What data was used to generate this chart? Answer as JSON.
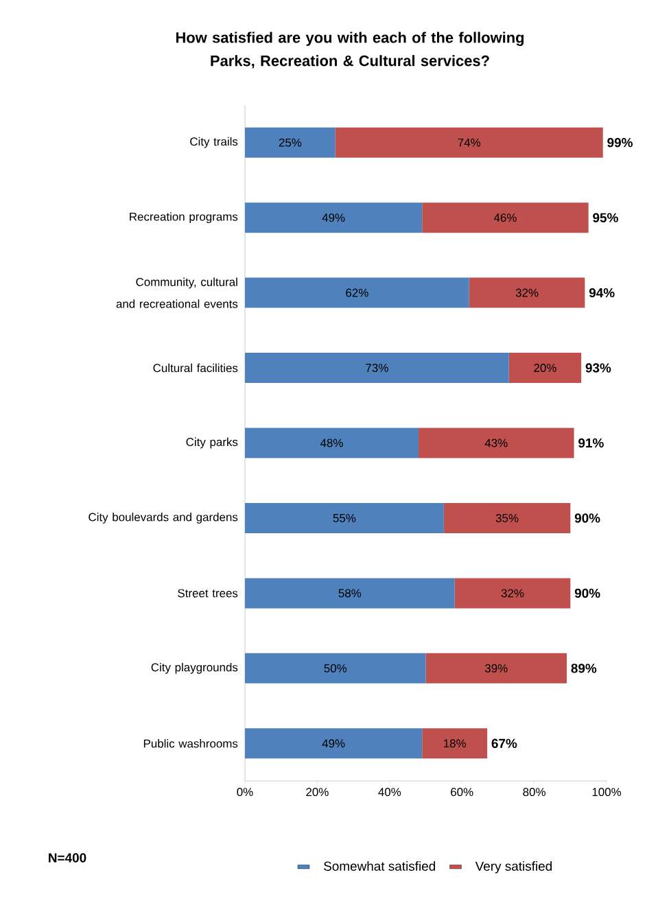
{
  "chart_data": {
    "type": "bar",
    "orientation": "horizontal",
    "stacked": true,
    "title": "How satisfied are you with each of the following Parks, Recreation & Cultural services?",
    "categories": [
      "City trails",
      "Recreation programs",
      "Community, cultural and recreational events",
      "Cultural facilities",
      "City parks",
      "City boulevards and gardens",
      "Street trees",
      "City playgrounds",
      "Public washrooms"
    ],
    "series": [
      {
        "name": "Somewhat satisfied",
        "color": "#4f81bd",
        "values": [
          25,
          49,
          62,
          73,
          48,
          55,
          58,
          50,
          49
        ],
        "value_labels": [
          "25%",
          "49%",
          "62%",
          "73%",
          "48%",
          "55%",
          "58%",
          "50%",
          "49%"
        ]
      },
      {
        "name": "Very satisfied",
        "color": "#c0504d",
        "values": [
          74,
          46,
          32,
          20,
          43,
          35,
          32,
          39,
          18
        ],
        "value_labels": [
          "74%",
          "46%",
          "32%",
          "20%",
          "43%",
          "35%",
          "32%",
          "39%",
          "18%"
        ]
      }
    ],
    "totals": [
      "99%",
      "95%",
      "94%",
      "93%",
      "91%",
      "90%",
      "90%",
      "89%",
      "67%"
    ],
    "xlim": [
      0,
      100
    ],
    "xticks": [
      {
        "value": 0,
        "label": "0%"
      },
      {
        "value": 20,
        "label": "20%"
      },
      {
        "value": 40,
        "label": "40%"
      },
      {
        "value": 60,
        "label": "60%"
      },
      {
        "value": 80,
        "label": "80%"
      },
      {
        "value": 100,
        "label": "100%"
      }
    ],
    "legend": "bottom",
    "grid": false,
    "annotations": [
      "N=400"
    ]
  }
}
